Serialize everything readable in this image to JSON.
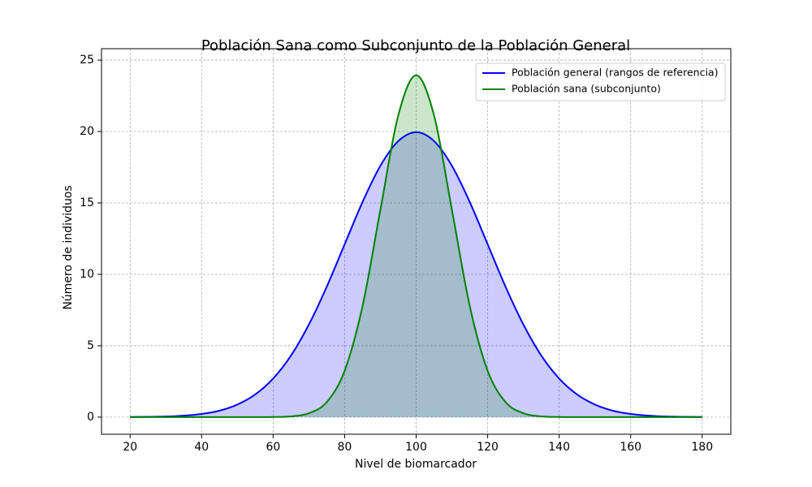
{
  "chart_data": {
    "type": "line",
    "title": "Población Sana como Subconjunto de la Población General",
    "x_label": "Nivel de biomarcador",
    "y_label": "Número de individuos",
    "x": [
      20,
      25,
      30,
      35,
      40,
      45,
      50,
      55,
      60,
      65,
      70,
      75,
      80,
      85,
      90,
      95,
      100,
      105,
      110,
      115,
      120,
      125,
      130,
      135,
      140,
      145,
      150,
      155,
      160,
      165,
      170,
      175,
      180
    ],
    "series": [
      {
        "name": "Población general (rangos de referencia)",
        "color": "#0000ff",
        "fill": "rgba(0,0,255,0.2)",
        "values": [
          0.01,
          0.02,
          0.04,
          0.1,
          0.22,
          0.45,
          0.88,
          1.59,
          2.7,
          4.31,
          6.48,
          9.13,
          12.1,
          15.06,
          17.6,
          19.33,
          19.95,
          19.33,
          17.6,
          15.06,
          12.1,
          9.13,
          6.48,
          4.31,
          2.7,
          1.59,
          0.88,
          0.45,
          0.22,
          0.1,
          0.04,
          0.02,
          0.01
        ]
      },
      {
        "name": "Población sana (subconjunto)",
        "color": "#008000",
        "fill": "rgba(0,128,0,0.2)",
        "values": [
          0,
          0,
          0,
          0,
          0,
          0,
          0,
          0,
          0.01,
          0.05,
          0.27,
          1.05,
          3.24,
          7.77,
          14.52,
          21.13,
          23.94,
          21.13,
          14.52,
          7.77,
          3.24,
          1.05,
          0.27,
          0.05,
          0.01,
          0,
          0,
          0,
          0,
          0,
          0,
          0,
          0
        ]
      }
    ],
    "xlim": [
      12,
      188
    ],
    "ylim": [
      -1.2,
      25.8
    ],
    "xticks": [
      20,
      40,
      60,
      80,
      100,
      120,
      140,
      160,
      180
    ],
    "yticks": [
      0,
      5,
      10,
      15,
      20,
      25
    ],
    "grid": true,
    "legend": "upper right"
  }
}
